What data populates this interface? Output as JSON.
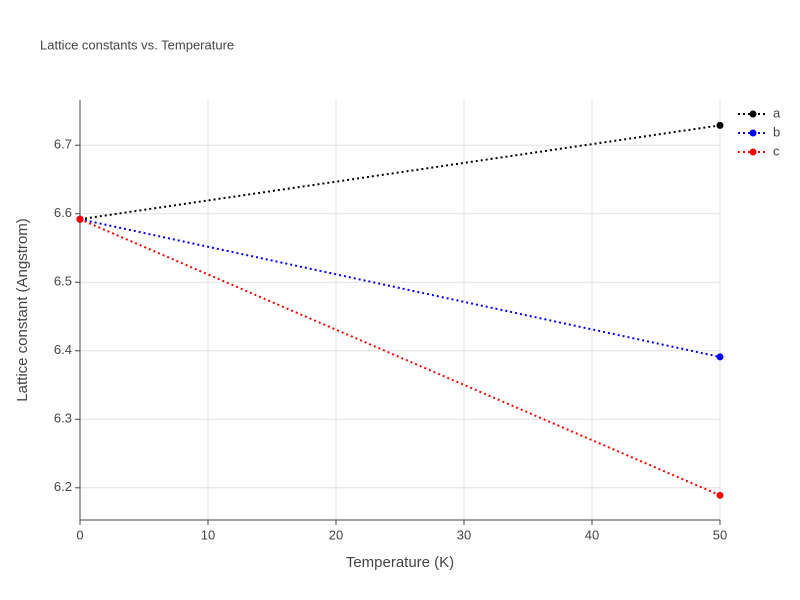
{
  "chart_data": {
    "type": "line",
    "title": "Lattice constants vs. Temperature",
    "x_label": "Temperature (K)",
    "y_label": "Lattice constant (Angstrom)",
    "x": [
      0,
      50
    ],
    "series": [
      {
        "name": "a",
        "color": "#000000",
        "values": [
          6.592,
          6.729
        ]
      },
      {
        "name": "b",
        "color": "#0000ff",
        "values": [
          6.592,
          6.391
        ]
      },
      {
        "name": "c",
        "color": "#ff0000",
        "values": [
          6.592,
          6.189
        ]
      }
    ],
    "xlim": [
      0,
      50
    ],
    "xticks": [
      0,
      10,
      20,
      30,
      40,
      50
    ],
    "ylim": [
      6.153,
      6.766
    ],
    "yticks": [
      6.2,
      6.3,
      6.4,
      6.5,
      6.6,
      6.7
    ],
    "grid": true,
    "legend": "top-right"
  }
}
